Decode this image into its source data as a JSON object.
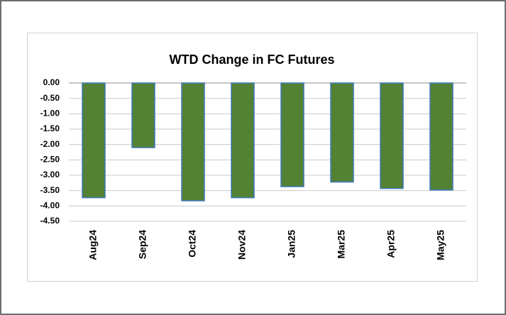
{
  "chart_data": {
    "type": "bar",
    "title": "WTD Change in FC Futures",
    "categories": [
      "Aug24",
      "Sep24",
      "Oct24",
      "Nov24",
      "Jan25",
      "Mar25",
      "Apr25",
      "May25"
    ],
    "values": [
      -3.73,
      -2.1,
      -3.83,
      -3.73,
      -3.37,
      -3.22,
      -3.43,
      -3.48
    ],
    "color": "#548235",
    "ylim": [
      -4.5,
      0
    ],
    "yticks": [
      {
        "value": 0,
        "label": "0.00"
      },
      {
        "value": -0.5,
        "label": "-0.50"
      },
      {
        "value": -1,
        "label": "-1.00"
      },
      {
        "value": -1.5,
        "label": "-1.50"
      },
      {
        "value": -2,
        "label": "-2.00"
      },
      {
        "value": -2.5,
        "label": "-2.50"
      },
      {
        "value": -3,
        "label": "-3.00"
      },
      {
        "value": -3.5,
        "label": "-3.50"
      },
      {
        "value": -4,
        "label": "-4.00"
      },
      {
        "value": -4.5,
        "label": "-4.50"
      }
    ],
    "grid": true
  }
}
